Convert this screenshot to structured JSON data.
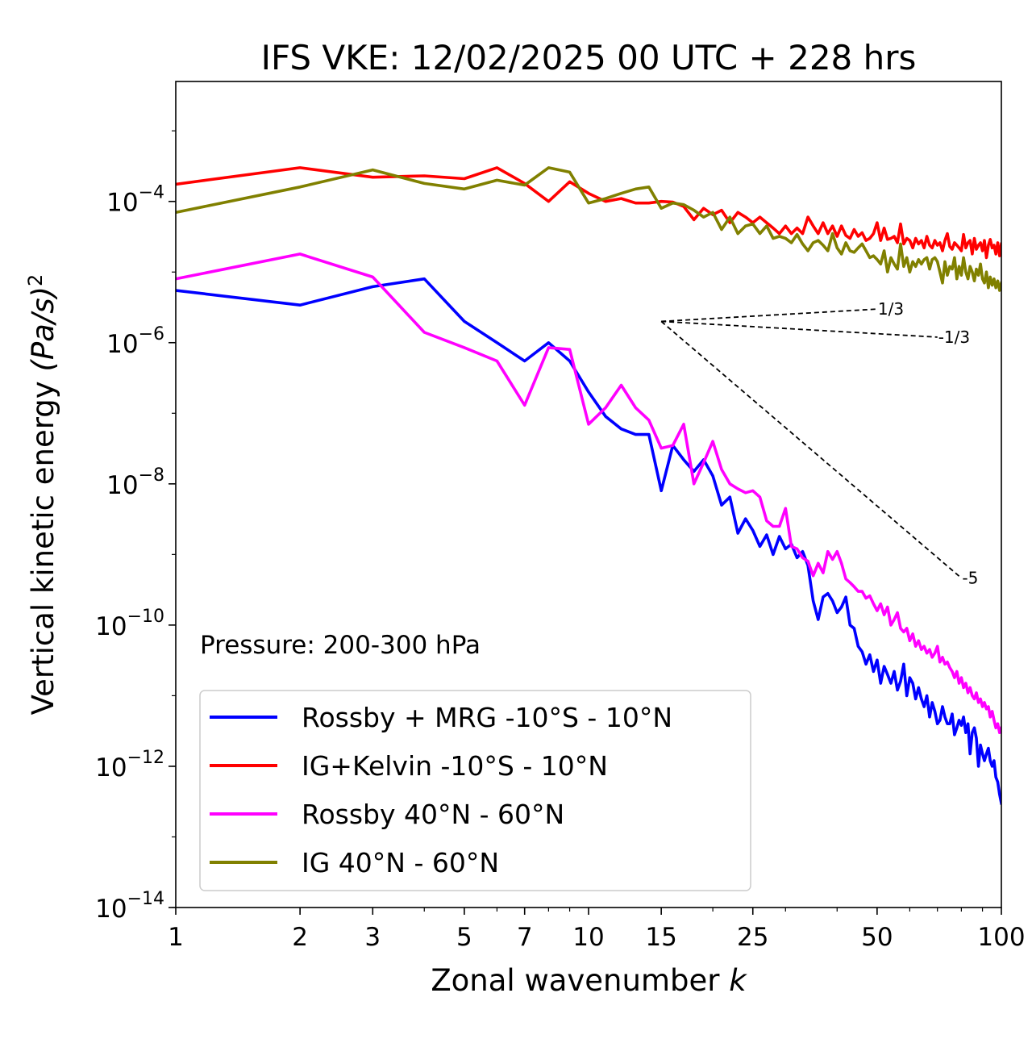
{
  "chart_data": {
    "type": "line",
    "title": "IFS VKE: 12/02/2025 00 UTC + 228 hrs",
    "xlabel": "Zonal wavenumber",
    "xlabel_var": "k",
    "ylabel": "Vertical kinetic energy",
    "ylabel_unit": "(Pa/s)",
    "ylabel_unit_exp": "2",
    "xscale": "log",
    "yscale": "log",
    "xlim": [
      1,
      100
    ],
    "ylim": [
      1e-14,
      0.005
    ],
    "x_ticks": [
      1,
      2,
      3,
      5,
      7,
      10,
      15,
      25,
      50,
      100
    ],
    "x_tick_labels": [
      "1",
      "2",
      "3",
      "5",
      "7",
      "10",
      "15",
      "25",
      "50",
      "100"
    ],
    "y_ticks": [
      1e-14,
      1e-12,
      1e-10,
      1e-08,
      1e-06,
      0.0001
    ],
    "y_tick_base": "10",
    "y_tick_exponents": [
      "−14",
      "−12",
      "−10",
      "−8",
      "−6",
      "−4"
    ],
    "annotation": "Pressure: 200-300 hPa",
    "legend_position": "lower-left",
    "reference_slopes": [
      {
        "label": "1/3",
        "slope": 0.3333,
        "x0": 15,
        "y0": 2e-06,
        "x1": 50
      },
      {
        "label": "-1/3",
        "slope": -0.3333,
        "x0": 15,
        "y0": 2e-06,
        "x1": 70
      },
      {
        "label": "-5",
        "slope": -5,
        "x0": 15,
        "y0": 2e-06,
        "x1": 80
      }
    ],
    "series": [
      {
        "name": "Rossby + MRG -10°S - 10°N",
        "color": "#0000ff",
        "x": [
          1,
          2,
          3,
          4,
          5,
          6,
          7,
          8,
          9,
          10,
          11,
          12,
          13,
          14,
          15,
          16,
          17,
          18,
          19,
          20,
          21,
          22,
          23,
          24,
          25,
          26,
          27,
          28,
          29,
          30,
          31,
          32,
          33,
          34,
          35,
          36,
          37,
          38,
          39,
          40,
          41,
          42,
          43,
          44,
          45,
          46,
          47,
          48,
          49,
          50,
          51,
          52,
          53,
          54,
          55,
          56,
          57,
          58,
          59,
          60,
          61,
          62,
          63,
          64,
          65,
          66,
          67,
          68,
          69,
          70,
          71,
          72,
          73,
          74,
          75,
          76,
          77,
          78,
          79,
          80,
          81,
          82,
          83,
          84,
          85,
          86,
          87,
          88,
          89,
          90,
          91,
          92,
          93,
          94,
          95,
          96,
          97,
          98,
          99,
          100
        ],
        "y": [
          5.5e-06,
          3.4e-06,
          6.2e-06,
          8e-06,
          2e-06,
          1e-06,
          5.5e-07,
          1e-06,
          5.5e-07,
          2e-07,
          9e-08,
          6e-08,
          5e-08,
          5e-08,
          8e-09,
          3.5e-08,
          2.2e-08,
          1.5e-08,
          2.2e-08,
          1.3e-08,
          5e-09,
          6.5e-09,
          2e-09,
          3.2e-09,
          2.2e-09,
          1.3e-09,
          1.9e-09,
          1e-09,
          1.8e-09,
          1.2e-09,
          1.4e-09,
          9e-10,
          1.1e-09,
          7e-10,
          2.2e-10,
          1.2e-10,
          2.5e-10,
          2.8e-10,
          2.2e-10,
          1.5e-10,
          1.8e-10,
          2.5e-10,
          1e-10,
          9e-11,
          5e-11,
          4.2e-11,
          2.8e-11,
          3.8e-11,
          2.2e-11,
          3.2e-11,
          1.5e-11,
          2.6e-11,
          2e-11,
          1.5e-11,
          2.2e-11,
          1.2e-11,
          1.6e-11,
          2.8e-11,
          1e-11,
          1.8e-11,
          1.5e-11,
          9e-12,
          1.3e-11,
          9e-12,
          7e-12,
          1e-11,
          5e-12,
          8e-12,
          6e-12,
          4e-12,
          4.5e-12,
          7e-12,
          5e-12,
          4e-12,
          4e-12,
          5.5e-12,
          2.8e-12,
          3.5e-12,
          4.5e-12,
          3.8e-12,
          5e-12,
          3e-12,
          4e-12,
          1.5e-12,
          3e-12,
          3.5e-12,
          2.5e-12,
          1e-12,
          2e-12,
          1.5e-12,
          1.2e-12,
          1.5e-12,
          1.8e-12,
          1.2e-12,
          1e-12,
          1.2e-12,
          7e-13,
          6e-13,
          4e-13,
          3e-13
        ]
      },
      {
        "name": "IG+Kelvin -10°S - 10°N",
        "color": "#ff0000",
        "x": [
          1,
          2,
          3,
          4,
          5,
          6,
          7,
          8,
          9,
          10,
          11,
          12,
          13,
          14,
          15,
          16,
          17,
          18,
          19,
          20,
          21,
          22,
          23,
          24,
          25,
          26,
          27,
          28,
          29,
          30,
          31,
          32,
          33,
          34,
          35,
          36,
          37,
          38,
          39,
          40,
          41,
          42,
          43,
          44,
          45,
          46,
          47,
          48,
          49,
          50,
          51,
          52,
          53,
          54,
          55,
          56,
          57,
          58,
          59,
          60,
          61,
          62,
          63,
          64,
          65,
          66,
          67,
          68,
          69,
          70,
          71,
          72,
          73,
          74,
          75,
          76,
          77,
          78,
          79,
          80,
          81,
          82,
          83,
          84,
          85,
          86,
          87,
          88,
          89,
          90,
          91,
          92,
          93,
          94,
          95,
          96,
          97,
          98,
          99,
          100
        ],
        "y": [
          0.000175,
          0.0003,
          0.00022,
          0.00023,
          0.00021,
          0.0003,
          0.00018,
          0.0001,
          0.00019,
          0.00013,
          0.0001,
          0.00011,
          9.5e-05,
          9.5e-05,
          0.0001,
          9.8e-05,
          8.5e-05,
          5.5e-05,
          8e-05,
          6.5e-05,
          7.5e-05,
          5e-05,
          7e-05,
          6e-05,
          5e-05,
          6e-05,
          5e-05,
          4.2e-05,
          3.5e-05,
          4.5e-05,
          3.5e-05,
          4.2e-05,
          3.5e-05,
          6e-05,
          4.5e-05,
          3.5e-05,
          5e-05,
          3.5e-05,
          4.5e-05,
          3.2e-05,
          4.5e-05,
          3.3e-05,
          3e-05,
          4e-05,
          3.2e-05,
          3.6e-05,
          2.8e-05,
          3e-05,
          3.5e-05,
          5e-05,
          2.8e-05,
          4.2e-05,
          2.9e-05,
          3e-05,
          3.2e-05,
          2.6e-05,
          4.8e-05,
          2.5e-05,
          3e-05,
          2.8e-05,
          2.2e-05,
          3e-05,
          2.5e-05,
          2.8e-05,
          2.2e-05,
          3.2e-05,
          2.4e-05,
          2.2e-05,
          2.8e-05,
          2.4e-05,
          2.6e-05,
          2e-05,
          2.8e-05,
          3.5e-05,
          2.3e-05,
          2.1e-05,
          2.6e-05,
          2.4e-05,
          2.2e-05,
          2e-05,
          3.4e-05,
          2.2e-05,
          2.6e-05,
          2.8e-05,
          1.8e-05,
          3e-05,
          2.1e-05,
          2.4e-05,
          2.6e-05,
          2e-05,
          2.8e-05,
          1.6e-05,
          2.4e-05,
          2.9e-05,
          2.2e-05,
          2.4e-05,
          1.8e-05,
          2.6e-05,
          1.7e-05,
          2.5e-05
        ]
      },
      {
        "name": "Rossby 40°N - 60°N",
        "color": "#ff00ff",
        "x": [
          1,
          2,
          3,
          4,
          5,
          6,
          7,
          8,
          9,
          10,
          11,
          12,
          13,
          14,
          15,
          16,
          17,
          18,
          19,
          20,
          21,
          22,
          23,
          24,
          25,
          26,
          27,
          28,
          29,
          30,
          31,
          32,
          33,
          34,
          35,
          36,
          37,
          38,
          39,
          40,
          41,
          42,
          43,
          44,
          45,
          46,
          47,
          48,
          49,
          50,
          51,
          52,
          53,
          54,
          55,
          56,
          57,
          58,
          59,
          60,
          61,
          62,
          63,
          64,
          65,
          66,
          67,
          68,
          69,
          70,
          71,
          72,
          73,
          74,
          75,
          76,
          77,
          78,
          79,
          80,
          81,
          82,
          83,
          84,
          85,
          86,
          87,
          88,
          89,
          90,
          91,
          92,
          93,
          94,
          95,
          96,
          97,
          98,
          99,
          100
        ],
        "y": [
          8e-06,
          1.8e-05,
          8.5e-06,
          1.4e-06,
          8.5e-07,
          5.5e-07,
          1.3e-07,
          8.5e-07,
          8e-07,
          7e-08,
          1.2e-07,
          2.5e-07,
          1.2e-07,
          8e-08,
          3.2e-08,
          3.5e-08,
          7e-08,
          1e-08,
          2e-08,
          4e-08,
          1.6e-08,
          1e-08,
          8.5e-09,
          7.5e-09,
          8e-09,
          6.5e-09,
          3e-09,
          2.5e-09,
          2.5e-09,
          4.5e-09,
          1.3e-09,
          1.2e-09,
          9e-10,
          8e-10,
          5e-10,
          7.5e-10,
          5.5e-10,
          1.1e-09,
          8.5e-10,
          1.1e-09,
          7.5e-10,
          4.5e-10,
          4e-10,
          3.5e-10,
          3e-10,
          3e-10,
          2.4e-10,
          2.6e-10,
          2e-10,
          1.6e-10,
          2e-10,
          1.4e-10,
          1.8e-10,
          1e-10,
          1.2e-10,
          1.5e-10,
          9e-11,
          8e-11,
          9e-11,
          6e-11,
          7.5e-11,
          5e-11,
          6e-11,
          4.5e-11,
          5e-11,
          4e-11,
          4.5e-11,
          3.5e-11,
          4e-11,
          5e-11,
          3e-11,
          3.5e-11,
          2.8e-11,
          3e-11,
          2.5e-11,
          2.2e-11,
          1.8e-11,
          2.2e-11,
          1.5e-11,
          1.8e-11,
          1.3e-11,
          1.5e-11,
          1.1e-11,
          1.3e-11,
          1e-11,
          9e-12,
          1.1e-11,
          8e-12,
          9e-12,
          7e-12,
          8e-12,
          6.5e-12,
          7e-12,
          5e-12,
          6e-12,
          4.5e-12,
          3.5e-12,
          4e-12,
          3e-12,
          3.5e-12
        ]
      },
      {
        "name": "IG 40°N - 60°N",
        "color": "#808000",
        "x": [
          1,
          2,
          3,
          4,
          5,
          6,
          7,
          8,
          9,
          10,
          11,
          12,
          13,
          14,
          15,
          16,
          17,
          18,
          19,
          20,
          21,
          22,
          23,
          24,
          25,
          26,
          27,
          28,
          29,
          30,
          31,
          32,
          33,
          34,
          35,
          36,
          37,
          38,
          39,
          40,
          41,
          42,
          43,
          44,
          45,
          46,
          47,
          48,
          49,
          50,
          51,
          52,
          53,
          54,
          55,
          56,
          57,
          58,
          59,
          60,
          61,
          62,
          63,
          64,
          65,
          66,
          67,
          68,
          69,
          70,
          71,
          72,
          73,
          74,
          75,
          76,
          77,
          78,
          79,
          80,
          81,
          82,
          83,
          84,
          85,
          86,
          87,
          88,
          89,
          90,
          91,
          92,
          93,
          94,
          95,
          96,
          97,
          98,
          99,
          100
        ],
        "y": [
          7e-05,
          0.00016,
          0.00028,
          0.00018,
          0.00015,
          0.0002,
          0.00017,
          0.0003,
          0.00026,
          9.5e-05,
          0.00011,
          0.00013,
          0.00015,
          0.00016,
          8e-05,
          9.5e-05,
          9e-05,
          7.5e-05,
          6e-05,
          7e-05,
          4e-05,
          6e-05,
          3.5e-05,
          4.5e-05,
          4.8e-05,
          3.5e-05,
          4.5e-05,
          3e-05,
          3.2e-05,
          3e-05,
          2.6e-05,
          3.4e-05,
          2.5e-05,
          2e-05,
          2.6e-05,
          2.8e-05,
          2.4e-05,
          2e-05,
          3.5e-05,
          2.2e-05,
          1.8e-05,
          2.6e-05,
          2e-05,
          1.9e-05,
          2.2e-05,
          2.5e-05,
          2e-05,
          1.6e-05,
          1.7e-05,
          1.5e-05,
          1.3e-05,
          2e-05,
          1e-05,
          1.6e-05,
          1.3e-05,
          1.1e-05,
          2.5e-05,
          1.2e-05,
          1.6e-05,
          1e-05,
          1.4e-05,
          1.2e-05,
          1.5e-05,
          1.3e-05,
          1.5e-05,
          1.6e-05,
          1.1e-05,
          1.5e-05,
          1.6e-05,
          1.4e-05,
          1e-05,
          7e-06,
          1.4e-05,
          9e-06,
          1.2e-05,
          1.1e-05,
          1.6e-05,
          8e-06,
          1.2e-05,
          9e-06,
          1.6e-05,
          1e-05,
          8e-06,
          1.2e-05,
          1e-05,
          7.5e-06,
          1.1e-05,
          9e-06,
          1.3e-05,
          8e-06,
          7e-06,
          1e-05,
          6e-06,
          8.5e-06,
          6.5e-06,
          8e-06,
          6e-06,
          7.5e-06,
          5.5e-06,
          7e-06
        ]
      }
    ]
  }
}
